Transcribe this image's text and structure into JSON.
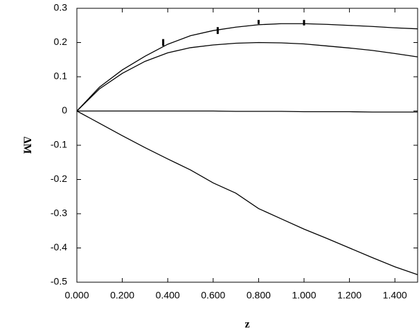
{
  "chart_data": {
    "type": "line",
    "xlabel": "z",
    "ylabel": "ΔM",
    "x": [
      0,
      0.1,
      0.2,
      0.3,
      0.4,
      0.5,
      0.6,
      0.7,
      0.8,
      0.9,
      1.0,
      1.1,
      1.2,
      1.3,
      1.4,
      1.5
    ],
    "series": [
      {
        "color": "#000000",
        "values": [
          0,
          0.07,
          0.12,
          0.16,
          0.195,
          0.22,
          0.235,
          0.245,
          0.252,
          0.255,
          0.255,
          0.253,
          0.25,
          0.247,
          0.243,
          0.24
        ]
      },
      {
        "color": "#000000",
        "values": [
          0,
          0.065,
          0.11,
          0.145,
          0.17,
          0.185,
          0.193,
          0.198,
          0.2,
          0.199,
          0.196,
          0.19,
          0.184,
          0.177,
          0.168,
          0.158
        ]
      },
      {
        "color": "#000000",
        "values": [
          0,
          0,
          0,
          0,
          0,
          0,
          0,
          -0.001,
          -0.001,
          -0.001,
          -0.002,
          -0.002,
          -0.002,
          -0.003,
          -0.003,
          -0.003
        ]
      },
      {
        "color": "#000000",
        "values": [
          0,
          -0.036,
          -0.072,
          -0.107,
          -0.14,
          -0.172,
          -0.21,
          -0.24,
          -0.285,
          -0.315,
          -0.345,
          -0.372,
          -0.4,
          -0.428,
          -0.455,
          -0.478
        ]
      }
    ],
    "error_bars": {
      "x": [
        0.38,
        0.62,
        0.8,
        1.0
      ],
      "values": [
        0.2,
        0.235,
        0.26,
        0.258
      ],
      "errors": [
        0.01,
        0.01,
        0.006,
        0.008
      ]
    },
    "xlim": [
      0,
      1.5
    ],
    "ylim": [
      -0.5,
      0.3
    ],
    "xticks": [
      {
        "value": 0,
        "label": "0.000"
      },
      {
        "value": 0.2,
        "label": "0.200"
      },
      {
        "value": 0.4,
        "label": "0.400"
      },
      {
        "value": 0.6,
        "label": "0.600"
      },
      {
        "value": 0.8,
        "label": "0.800"
      },
      {
        "value": 1.0,
        "label": "1.000"
      },
      {
        "value": 1.2,
        "label": "1.200"
      },
      {
        "value": 1.4,
        "label": "1.400"
      }
    ],
    "yticks": [
      0.3,
      0.2,
      0.1,
      0,
      -0.1,
      -0.2,
      -0.3,
      -0.4,
      -0.5
    ]
  }
}
